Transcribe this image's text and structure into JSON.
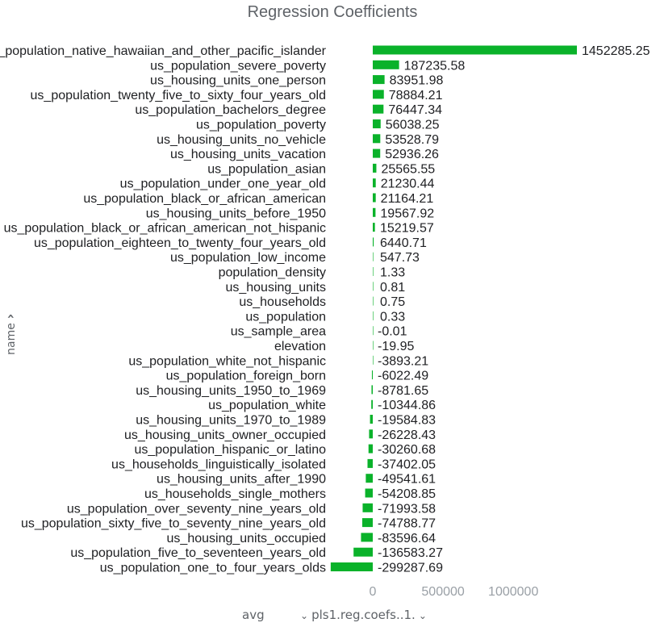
{
  "chart_data": {
    "type": "bar",
    "orientation": "horizontal",
    "title": "Regression Coefficients",
    "ylabel": "name",
    "xlabel": "",
    "xlim": [
      -300000,
      1460000
    ],
    "xticks": [
      0,
      500000,
      1000000
    ],
    "grid": false,
    "bar_color": "#0ab22a",
    "categories": [
      "us_population_native_hawaiian_and_other_pacific_islander",
      "us_population_severe_poverty",
      "us_housing_units_one_person",
      "us_population_twenty_five_to_sixty_four_years_old",
      "us_population_bachelors_degree",
      "us_population_poverty",
      "us_housing_units_no_vehicle",
      "us_housing_units_vacation",
      "us_population_asian",
      "us_population_under_one_year_old",
      "us_population_black_or_african_american",
      "us_housing_units_before_1950",
      "us_population_black_or_african_american_not_hispanic",
      "us_population_eighteen_to_twenty_four_years_old",
      "us_population_low_income",
      "population_density",
      "us_housing_units",
      "us_households",
      "us_population",
      "us_sample_area",
      "elevation",
      "us_population_white_not_hispanic",
      "us_population_foreign_born",
      "us_housing_units_1950_to_1969",
      "us_population_white",
      "us_housing_units_1970_to_1989",
      "us_housing_units_owner_occupied",
      "us_population_hispanic_or_latino",
      "us_households_linguistically_isolated",
      "us_housing_units_after_1990",
      "us_households_single_mothers",
      "us_population_over_seventy_nine_years_old",
      "us_population_sixty_five_to_seventy_nine_years_old",
      "us_housing_units_occupied",
      "us_population_five_to_seventeen_years_old",
      "us_population_one_to_four_years_olds"
    ],
    "values": [
      1452285.25,
      187235.58,
      83951.98,
      78884.21,
      76447.34,
      56038.25,
      53528.79,
      52936.26,
      25565.55,
      21230.44,
      21164.21,
      19567.92,
      15219.57,
      6440.71,
      547.73,
      1.33,
      0.81,
      0.75,
      0.33,
      -0.01,
      -19.95,
      -3893.21,
      -6022.49,
      -8781.65,
      -10344.86,
      -19584.83,
      -26228.43,
      -30260.68,
      -37402.05,
      -49541.61,
      -54208.85,
      -71993.58,
      -74788.77,
      -83596.64,
      -136583.27,
      -299287.69
    ],
    "value_labels": [
      "1452285.25",
      "187235.58",
      "83951.98",
      "78884.21",
      "76447.34",
      "56038.25",
      "53528.79",
      "52936.26",
      "25565.55",
      "21230.44",
      "21164.21",
      "19567.92",
      "15219.57",
      "6440.71",
      "547.73",
      "1.33",
      "0.81",
      "0.75",
      "0.33",
      "-0.01",
      "-19.95",
      "-3893.21",
      "-6022.49",
      "-8781.65",
      "-10344.86",
      "-19584.83",
      "-26228.43",
      "-30260.68",
      "-37402.05",
      "-49541.61",
      "-54208.85",
      "-71993.58",
      "-74788.77",
      "-83596.64",
      "-136583.27",
      "-299287.69"
    ]
  },
  "controls": {
    "y_field_label": "name",
    "y_field_chevron": "›",
    "aggregate_label": "avg",
    "field_select_value": "pls1.reg.coefs..1.",
    "field_select_chevron": "⌄"
  }
}
